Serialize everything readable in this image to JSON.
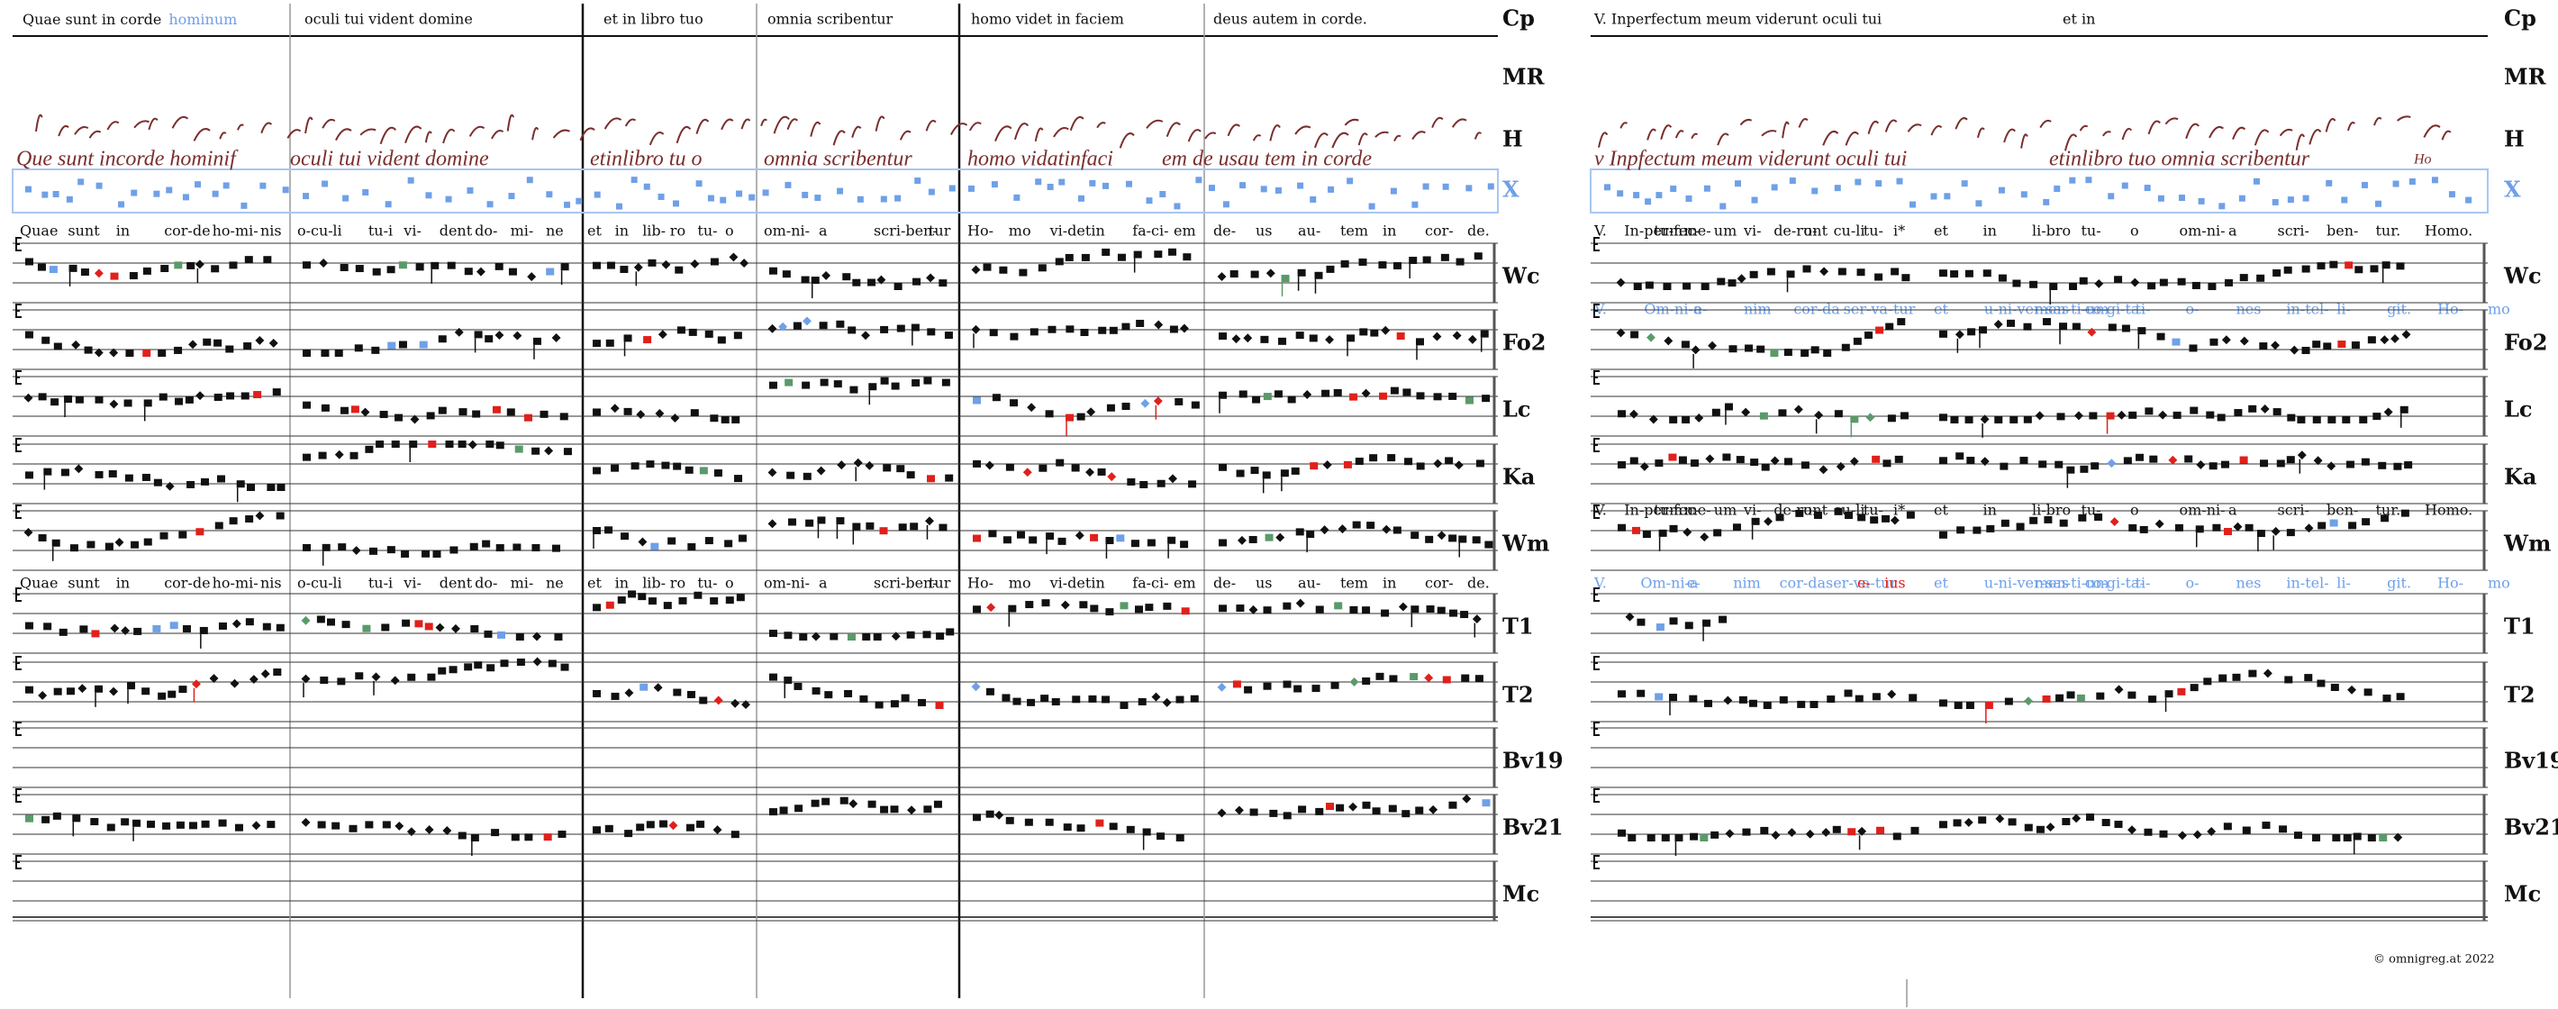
{
  "score": {
    "voice_labels": [
      "Cp",
      "MR",
      "H",
      "X",
      "Wc",
      "Fo2",
      "Lc",
      "Ka",
      "Wm",
      "T1",
      "T2",
      "Bv19",
      "Bv21",
      "Mc"
    ],
    "left": {
      "cp_phrases": [
        "Quae sunt in corde",
        "oculi tui vident domine",
        "et in libro tuo",
        "omnia scribentur",
        "homo videt in faciem",
        "deus autem in corde."
      ],
      "cp_highlight": "hominum",
      "manuscript_text": [
        "Que sunt incorde hominif",
        "oculi tui vident domine",
        "etinlibro tu o",
        "omnia scribentur",
        "homo vidatinfaci",
        "em de usau tem in corde"
      ],
      "lyrics_upper": [
        [
          "Quae",
          "sunt",
          "in",
          "cor-de",
          "ho-mi-",
          "nis"
        ],
        [
          "o-cu-",
          "li",
          "tu-i",
          "vi-",
          "dent",
          "do-",
          "mi-",
          "ne"
        ],
        [
          "et",
          "in",
          "lib-",
          "ro",
          "tu-",
          "o"
        ],
        [
          "om-ni-",
          "a",
          "scri-ben-",
          "tur"
        ],
        [
          "Ho-",
          "mo",
          "vi-det",
          "in",
          "fa-ci-",
          "em"
        ],
        [
          "de-",
          "us",
          "au-",
          "tem",
          "in",
          "cor-",
          "de."
        ]
      ],
      "lyrics_lower": [
        [
          "Quae",
          "sunt",
          "in",
          "cor-de",
          "ho-mi-",
          "nis"
        ],
        [
          "o-cu-",
          "li",
          "tu-i",
          "vi-",
          "dent",
          "do-",
          "mi-",
          "ne"
        ],
        [
          "et",
          "in",
          "lib-",
          "ro",
          "tu-",
          "o"
        ],
        [
          "om-ni-",
          "a",
          "scri-ben-",
          "tur"
        ],
        [
          "Ho-",
          "mo",
          "vi-det",
          "in",
          "fa-ci-",
          "em"
        ],
        [
          "de-",
          "us",
          "au-",
          "tem",
          "in",
          "cor-",
          "de."
        ]
      ]
    },
    "right": {
      "cp_phrases": [
        "V. Inperfectum meum viderunt oculi tui",
        "et in"
      ],
      "manuscript_text": [
        "v Inpfectum meum viderunt oculi tui",
        "etinlibro tuo omnia scribentur",
        "Ho"
      ],
      "verse_lines": [
        [
          {
            "tone": "black",
            "syllables": [
              "V.",
              "In-per-fec-",
              "tum",
              "me-",
              "um",
              "vi-",
              "de-runt",
              "o-",
              "cu-li",
              "tu-",
              "i*"
            ]
          },
          {
            "tone": "black",
            "syllables": [
              "et",
              "in",
              "li-bro",
              "tu-",
              "o",
              "om-ni-",
              "a",
              "scri-",
              "ben-",
              "tur.",
              "Homo."
            ]
          }
        ],
        [
          {
            "tone": "blue",
            "syllables": [
              "V.",
              "Om-ni-a",
              "e-",
              "nim",
              "cor-da",
              "ser-va-",
              "tur"
            ]
          },
          {
            "tone": "blue",
            "syllables": [
              "et",
              "u-ni-ver-sas",
              "men-ti-um",
              "co-gi-ta-",
              "ti-",
              "o-",
              "nes",
              "in-tel-",
              "li-",
              "git.",
              "Ho-",
              "mo"
            ]
          }
        ],
        [
          {
            "tone": "black",
            "syllables": [
              "V.",
              "In-per-fec-",
              "tum",
              "me-",
              "um",
              "vi-",
              "de-runt",
              "o-",
              "cu-li",
              "tu-",
              "i*"
            ]
          },
          {
            "tone": "black",
            "syllables": [
              "et",
              "in",
              "li-bro",
              "tu-",
              "o",
              "om-ni-",
              "a",
              "scri-",
              "ben-",
              "tur.",
              "Homo."
            ]
          }
        ],
        [
          {
            "tone": "blue",
            "syllables": [
              "V.",
              "Om-ni-a",
              "e-",
              "nim",
              "cor-da",
              "ser-va-tur"
            ]
          },
          {
            "tone": "red",
            "syllables": [
              "e-",
              "ius"
            ]
          },
          {
            "tone": "blue",
            "syllables": [
              "et",
              "u-ni-ver-sas",
              "men-ti-um",
              "co-gi-ta-",
              "ti-",
              "o-",
              "nes",
              "in-tel-",
              "li-",
              "git.",
              "Ho-",
              "mo"
            ]
          }
        ]
      ]
    },
    "footer": "© omnigreg.at 2022"
  }
}
